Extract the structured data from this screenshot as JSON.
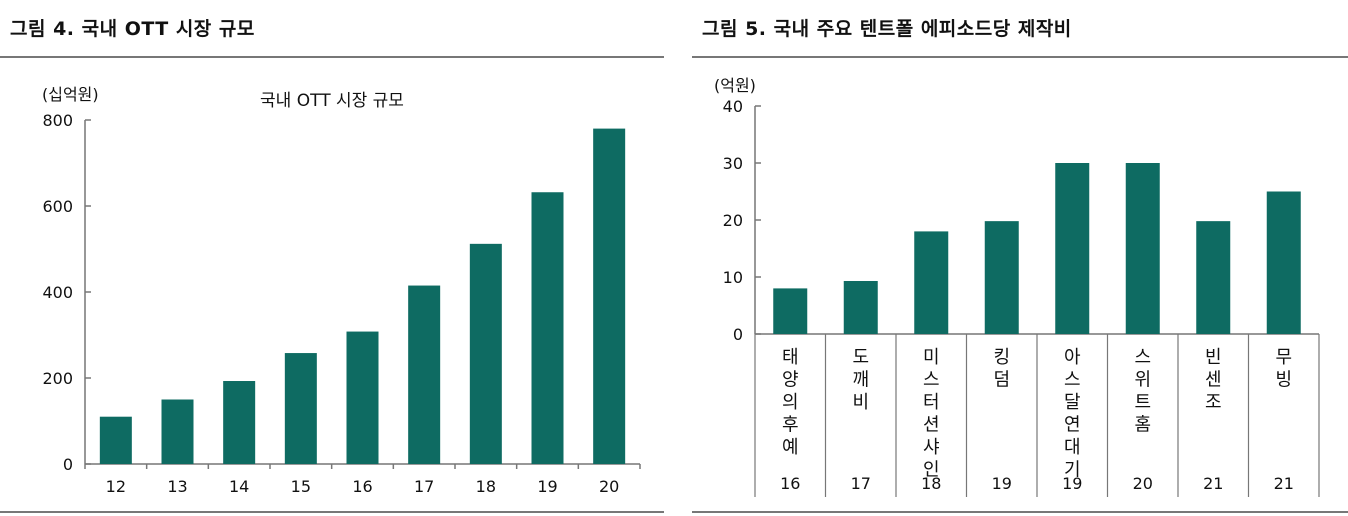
{
  "charts": [
    {
      "figure_title": "그림 4. 국내 OTT 시장 규모",
      "unit": "(십억원)"
    },
    {
      "figure_title": "그림 5. 국내 주요 텐트폴 에피소드당 제작비",
      "unit": "(억원)"
    }
  ],
  "chart_data": [
    {
      "type": "bar",
      "title": "국내 OTT 시장 규모",
      "xlabel": "",
      "ylabel": "(십억원)",
      "categories": [
        "12",
        "13",
        "14",
        "15",
        "16",
        "17",
        "18",
        "19",
        "20"
      ],
      "values": [
        110,
        150,
        193,
        258,
        308,
        415,
        512,
        632,
        780
      ],
      "ylim": [
        0,
        800
      ],
      "yticks": [
        0,
        200,
        400,
        600,
        800
      ],
      "color": "#0e6b62",
      "grid": false,
      "legend": "none"
    },
    {
      "type": "bar",
      "title": "",
      "xlabel": "",
      "ylabel": "(억원)",
      "categories": [
        "태양의 후예",
        "도깨비",
        "미스터 션샤인",
        "킹덤",
        "아스달연대기",
        "스위트홈",
        "빈센조",
        "무빙"
      ],
      "years": [
        "16",
        "17",
        "18",
        "19",
        "19",
        "20",
        "21",
        "21"
      ],
      "values": [
        8,
        9.3,
        18,
        19.8,
        30,
        30,
        19.8,
        25
      ],
      "ylim": [
        0,
        40
      ],
      "yticks": [
        0,
        10,
        20,
        30,
        40
      ],
      "color": "#0e6b62",
      "grid": false,
      "legend": "none"
    }
  ]
}
